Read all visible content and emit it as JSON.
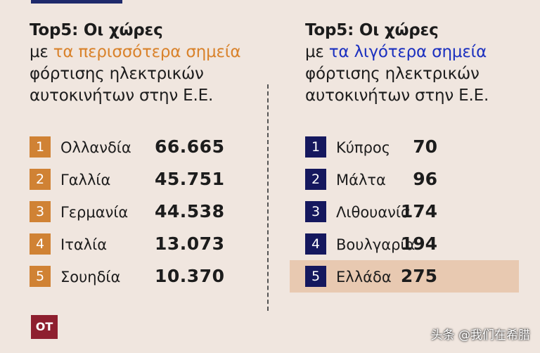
{
  "chart_data": [
    {
      "type": "table",
      "title_line1": "Top5: Οι χώρες",
      "title_prefix": "με ",
      "title_highlight": "τα περισσότερα σημεία",
      "title_line3": "φόρτισης ηλεκτρικών",
      "title_line4": "αυτοκινήτων στην Ε.Ε.",
      "highlight_color": "#d9822b",
      "rank_color": "#d08234",
      "rows": [
        {
          "rank": "1",
          "country": "Ολλανδία",
          "value": "66.665"
        },
        {
          "rank": "2",
          "country": "Γαλλία",
          "value": "45.751"
        },
        {
          "rank": "3",
          "country": "Γερμανία",
          "value": "44.538"
        },
        {
          "rank": "4",
          "country": "Ιταλία",
          "value": "13.073"
        },
        {
          "rank": "5",
          "country": "Σουηδία",
          "value": "10.370"
        }
      ]
    },
    {
      "type": "table",
      "title_line1": "Top5: Οι χώρες",
      "title_prefix": "με ",
      "title_highlight": "τα λιγότερα σημεία",
      "title_line3": "φόρτισης ηλεκτρικών",
      "title_line4": "αυτοκινήτων στην Ε.Ε.",
      "highlight_color": "#1a2fbf",
      "rank_color": "#15185e",
      "highlighted_row_color": "#e8c9b1",
      "rows": [
        {
          "rank": "1",
          "country": "Κύπρος",
          "value": "70"
        },
        {
          "rank": "2",
          "country": "Μάλτα",
          "value": "96"
        },
        {
          "rank": "3",
          "country": "Λιθουανία",
          "value": "174"
        },
        {
          "rank": "4",
          "country": "Βουλγαρία",
          "value": "194"
        },
        {
          "rank": "5",
          "country": "Ελλάδα",
          "value": "275",
          "highlighted": true
        }
      ]
    }
  ],
  "logo": {
    "text": "OT",
    "color": "#8e1f2f"
  },
  "watermark": {
    "text": "头条 @我们在希腊"
  }
}
